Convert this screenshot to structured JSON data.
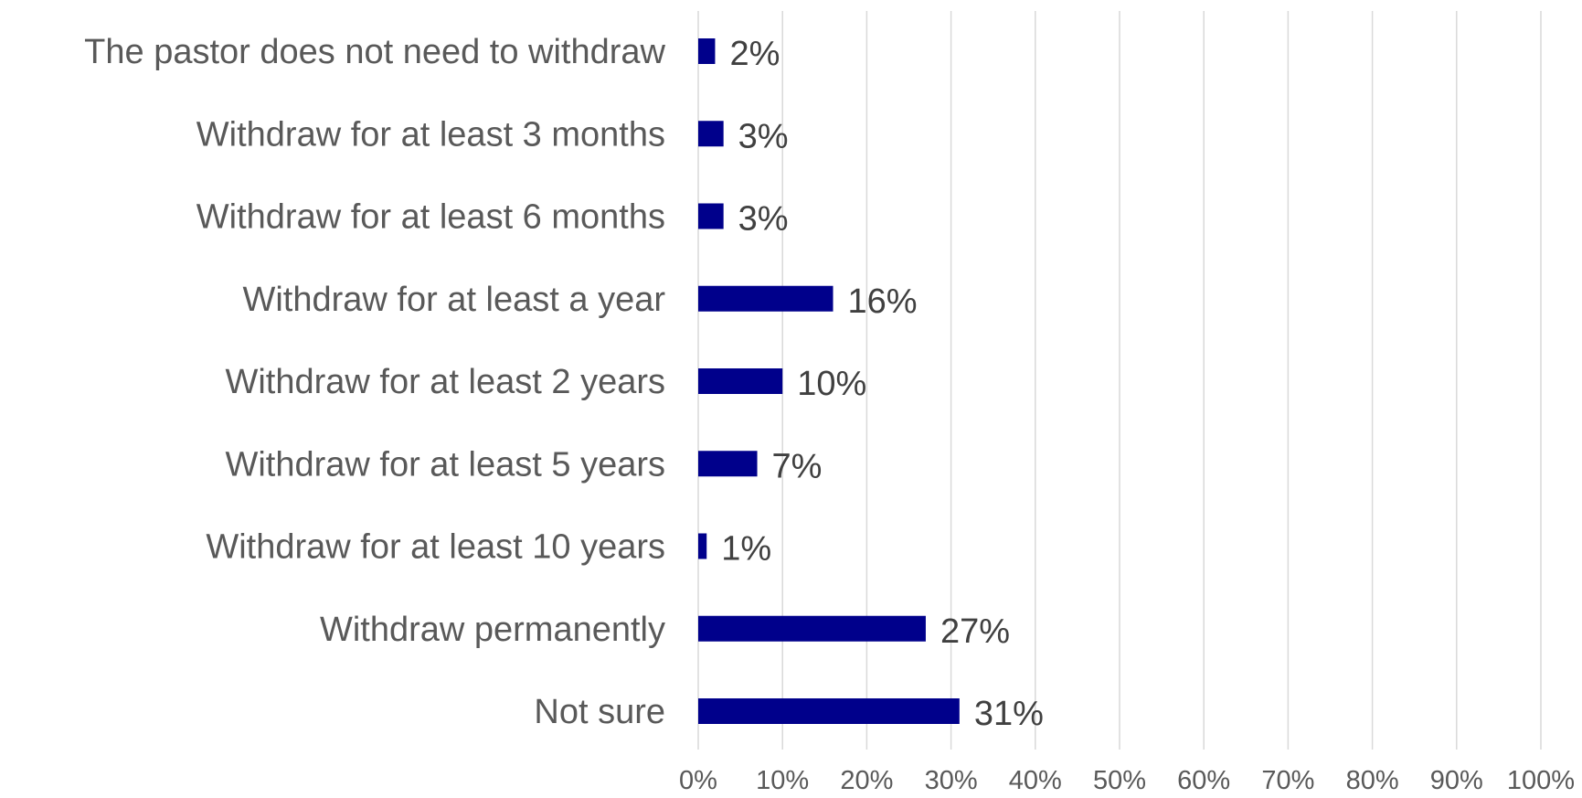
{
  "chart_data": {
    "type": "bar",
    "orientation": "horizontal",
    "categories": [
      "The pastor does not need to withdraw",
      "Withdraw for at least 3 months",
      "Withdraw for at least 6 months",
      "Withdraw for at least a year",
      "Withdraw for at least 2 years",
      "Withdraw for at least 5 years",
      "Withdraw for at least 10 years",
      "Withdraw permanently",
      "Not sure"
    ],
    "values": [
      2,
      3,
      3,
      16,
      10,
      7,
      1,
      27,
      31
    ],
    "data_labels": [
      "2%",
      "3%",
      "3%",
      "16%",
      "10%",
      "7%",
      "1%",
      "27%",
      "31%"
    ],
    "xlim": [
      0,
      100
    ],
    "x_ticks": [
      "0%",
      "10%",
      "20%",
      "30%",
      "40%",
      "50%",
      "60%",
      "70%",
      "80%",
      "90%",
      "100%"
    ],
    "grid": true,
    "bar_color": "#00008b",
    "title": "",
    "xlabel": "",
    "ylabel": ""
  }
}
